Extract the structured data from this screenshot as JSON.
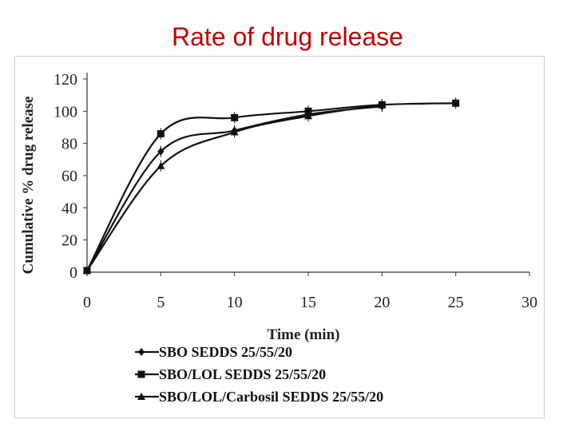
{
  "slide": {
    "title": "Rate of drug release"
  },
  "chart_data": {
    "type": "line",
    "title": "",
    "xlabel": "Time (min)",
    "ylabel": "Cumulative % drug release",
    "xlim": [
      0,
      30
    ],
    "ylim": [
      0,
      120
    ],
    "xticks": [
      0,
      5,
      10,
      15,
      20,
      25,
      30
    ],
    "yticks": [
      0,
      20,
      40,
      60,
      80,
      100,
      120
    ],
    "grid": false,
    "legend_position": "bottom",
    "series": [
      {
        "name": "SBO SEDDS 25/55/20",
        "marker": "diamond",
        "x": [
          0,
          5,
          10,
          15,
          20
        ],
        "y": [
          1,
          75,
          88,
          98,
          103
        ]
      },
      {
        "name": "SBO/LOL SEDDS  25/55/20",
        "marker": "square",
        "x": [
          0,
          5,
          10,
          15,
          20,
          25
        ],
        "y": [
          1,
          86,
          96,
          100,
          104,
          105
        ]
      },
      {
        "name": "SBO/LOL/Carbosil SEDDS 25/55/20",
        "marker": "triangle",
        "x": [
          0,
          5,
          10,
          15,
          20
        ],
        "y": [
          1,
          66,
          87,
          97,
          104
        ]
      }
    ]
  }
}
